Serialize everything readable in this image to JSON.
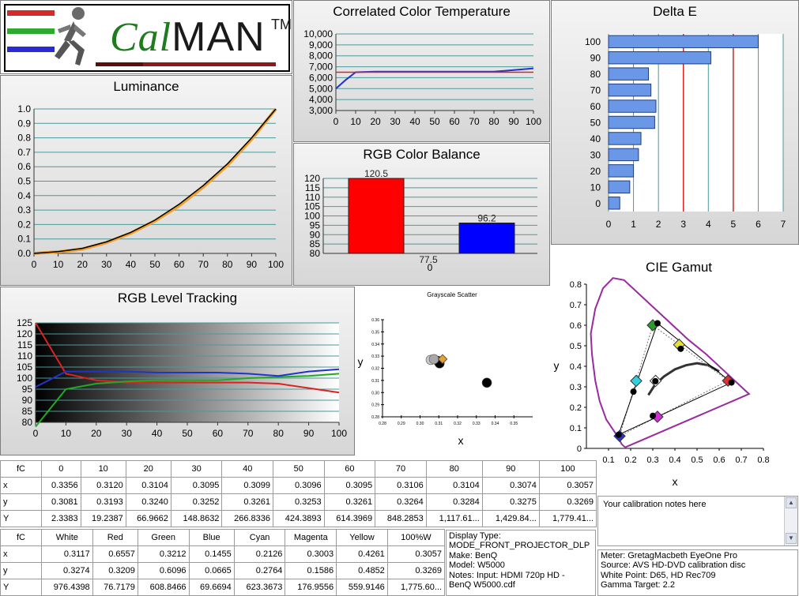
{
  "logo": {
    "brand_prefix": "Cal",
    "brand_main": "MAN",
    "trademark": "TM",
    "stripe_colors": [
      "#d42a2a",
      "#2eaa2e",
      "#2a2ad4"
    ]
  },
  "luminance": {
    "title": "Luminance",
    "chart_data": {
      "type": "line",
      "title": "Luminance",
      "x": [
        0,
        10,
        20,
        30,
        40,
        50,
        60,
        70,
        80,
        90,
        100
      ],
      "series": [
        {
          "values": [
            0,
            0.01,
            0.03,
            0.075,
            0.14,
            0.225,
            0.33,
            0.46,
            0.61,
            0.79,
            1.0
          ],
          "color": "#f0a030"
        },
        {
          "values": [
            0,
            0.012,
            0.035,
            0.08,
            0.145,
            0.23,
            0.34,
            0.47,
            0.62,
            0.8,
            1.0
          ],
          "color": "#000000"
        }
      ],
      "xlim": [
        0,
        100
      ],
      "ylim": [
        0,
        1.0
      ],
      "xticks": [
        "0",
        "10",
        "20",
        "30",
        "40",
        "50",
        "60",
        "70",
        "80",
        "90",
        "100"
      ],
      "yticks": [
        "0.0",
        "0.1",
        "0.2",
        "0.3",
        "0.4",
        "0.5",
        "0.6",
        "0.7",
        "0.8",
        "0.9",
        "1.0"
      ]
    }
  },
  "cct": {
    "title": "Correlated Color Temperature",
    "chart_data": {
      "type": "line",
      "title": "Correlated Color Temperature",
      "x": [
        0,
        5,
        10,
        20,
        30,
        40,
        50,
        60,
        70,
        80,
        90,
        100
      ],
      "series": [
        {
          "values": [
            5000,
            5800,
            6500,
            6550,
            6550,
            6550,
            6550,
            6550,
            6550,
            6550,
            6700,
            6850
          ],
          "color": "#2233cc"
        },
        {
          "values": [
            6500,
            6500,
            6500,
            6500,
            6500,
            6500,
            6500,
            6500,
            6500,
            6500,
            6500,
            6500
          ],
          "color": "#dd2222"
        }
      ],
      "xlim": [
        0,
        100
      ],
      "ylim": [
        3000,
        10000
      ],
      "xticks": [
        "0",
        "10",
        "20",
        "30",
        "40",
        "50",
        "60",
        "70",
        "80",
        "90",
        "100"
      ],
      "yticks": [
        "3,000",
        "4,000",
        "5,000",
        "6,000",
        "7,000",
        "8,000",
        "9,000",
        "10,000"
      ]
    }
  },
  "delta_e": {
    "title": "Delta E",
    "chart_data": {
      "type": "bar",
      "orientation": "horizontal",
      "title": "Delta E",
      "categories": [
        "100",
        "90",
        "80",
        "70",
        "60",
        "50",
        "40",
        "30",
        "20",
        "10",
        "0"
      ],
      "values": [
        6.0,
        4.1,
        1.6,
        1.7,
        1.9,
        1.85,
        1.3,
        1.2,
        1.0,
        0.85,
        0.45
      ],
      "xlim": [
        0,
        7
      ],
      "thresholds": [
        3,
        5
      ],
      "xticks": [
        "0",
        "1",
        "2",
        "3",
        "4",
        "5",
        "6",
        "7"
      ]
    }
  },
  "rgb_balance": {
    "title": "RGB Color Balance",
    "chart_data": {
      "type": "bar",
      "title": "RGB Color Balance",
      "categories": [
        "0"
      ],
      "series": [
        {
          "values": [
            120.5
          ],
          "color": "#ff0000",
          "label": "120.5"
        },
        {
          "values": [
            77.5
          ],
          "color": "#00aa00",
          "label": "77.5"
        },
        {
          "values": [
            96.2
          ],
          "color": "#0000ff",
          "label": "96.2"
        }
      ],
      "ylim": [
        80,
        120
      ],
      "yticks": [
        "80",
        "85",
        "90",
        "95",
        "100",
        "105",
        "110",
        "115",
        "120"
      ]
    }
  },
  "rgb_tracking": {
    "title": "RGB Level Tracking",
    "chart_data": {
      "type": "line",
      "title": "RGB Level Tracking",
      "x": [
        0,
        10,
        20,
        30,
        40,
        50,
        60,
        70,
        80,
        90,
        100
      ],
      "series": [
        {
          "values": [
            125,
            102,
            99,
            98,
            98,
            98,
            98,
            98,
            97.5,
            95.5,
            93.5
          ],
          "color": "#dd2222"
        },
        {
          "values": [
            78,
            95,
            97.5,
            98.5,
            99,
            99,
            99,
            100,
            100.5,
            101,
            102
          ],
          "color": "#22aa22"
        },
        {
          "values": [
            96,
            103,
            103,
            103,
            102.5,
            102.5,
            102.5,
            102,
            101,
            103,
            104
          ],
          "color": "#2233cc"
        }
      ],
      "xlim": [
        0,
        100
      ],
      "ylim": [
        80,
        125
      ],
      "xticks": [
        "0",
        "10",
        "20",
        "30",
        "40",
        "50",
        "60",
        "70",
        "80",
        "90",
        "100"
      ],
      "yticks": [
        "80",
        "85",
        "90",
        "95",
        "100",
        "105",
        "110",
        "115",
        "120",
        "125"
      ]
    }
  },
  "scatter": {
    "title": "Grayscale Scatter",
    "xlabel": "x",
    "ylabel": "y",
    "chart_data": {
      "type": "scatter",
      "title": "Grayscale Scatter",
      "points": [
        {
          "x": 0.3095,
          "y": 0.3261,
          "color": "#000000"
        },
        {
          "x": 0.3099,
          "y": 0.3252,
          "color": "#000000"
        },
        {
          "x": 0.3356,
          "y": 0.3081,
          "color": "#000000"
        },
        {
          "x": 0.3104,
          "y": 0.324,
          "color": "#000000"
        },
        {
          "x": 0.3057,
          "y": 0.3269,
          "color": "#c8c8c8"
        },
        {
          "x": 0.3074,
          "y": 0.3275,
          "color": "#a8a8a8"
        },
        {
          "x": 0.312,
          "y": 0.3276,
          "color": "#e8a030"
        }
      ],
      "xlim": [
        0.28,
        0.36
      ],
      "ylim": [
        0.28,
        0.36
      ],
      "xticks": [
        "0.28",
        "0.29",
        "0.30",
        "0.31",
        "0.32",
        "0.33",
        "0.34",
        "0.35"
      ],
      "yticks": [
        "0.28",
        "0.29",
        "0.30",
        "0.31",
        "0.32",
        "0.33",
        "0.34",
        "0.35",
        "0.36"
      ]
    }
  },
  "gamut": {
    "title": "CIE Gamut",
    "xlabel": "x",
    "ylabel": "y",
    "chart_data": {
      "type": "scatter",
      "title": "CIE Gamut",
      "reference": [
        {
          "name": "Red",
          "x": 0.64,
          "y": 0.33,
          "color": "#e03030"
        },
        {
          "name": "Green",
          "x": 0.3,
          "y": 0.6,
          "color": "#2a9a2a"
        },
        {
          "name": "Blue",
          "x": 0.15,
          "y": 0.06,
          "color": "#3030d0"
        },
        {
          "name": "Cyan",
          "x": 0.225,
          "y": 0.329,
          "color": "#30d0e0"
        },
        {
          "name": "Magenta",
          "x": 0.321,
          "y": 0.154,
          "color": "#d030d0"
        },
        {
          "name": "Yellow",
          "x": 0.419,
          "y": 0.505,
          "color": "#e8e030"
        },
        {
          "name": "White",
          "x": 0.3127,
          "y": 0.329,
          "color": "#ffffff"
        }
      ],
      "measured": [
        {
          "x": 0.6557,
          "y": 0.3209
        },
        {
          "x": 0.3212,
          "y": 0.6096
        },
        {
          "x": 0.1455,
          "y": 0.0665
        },
        {
          "x": 0.2126,
          "y": 0.2764
        },
        {
          "x": 0.3003,
          "y": 0.1586
        },
        {
          "x": 0.4261,
          "y": 0.4852
        },
        {
          "x": 0.3117,
          "y": 0.3274
        }
      ],
      "xlim": [
        0,
        0.8
      ],
      "ylim": [
        0,
        0.8
      ],
      "xticks": [
        "0.1",
        "0.2",
        "0.3",
        "0.4",
        "0.5",
        "0.6",
        "0.7",
        "0.8"
      ],
      "yticks": [
        "0",
        "0.1",
        "0.2",
        "0.3",
        "0.4",
        "0.5",
        "0.6",
        "0.7",
        "0.8"
      ]
    }
  },
  "grayscale_table": {
    "header": [
      "fC",
      "0",
      "10",
      "20",
      "30",
      "40",
      "50",
      "60",
      "70",
      "80",
      "90",
      "100"
    ],
    "rows": [
      [
        "x",
        "0.3356",
        "0.3120",
        "0.3104",
        "0.3095",
        "0.3099",
        "0.3096",
        "0.3095",
        "0.3106",
        "0.3104",
        "0.3074",
        "0.3057"
      ],
      [
        "y",
        "0.3081",
        "0.3193",
        "0.3240",
        "0.3252",
        "0.3261",
        "0.3253",
        "0.3261",
        "0.3264",
        "0.3284",
        "0.3275",
        "0.3269"
      ],
      [
        "Y",
        "2.3383",
        "19.2387",
        "66.9662",
        "148.8632",
        "266.8336",
        "424.3893",
        "614.3969",
        "848.2853",
        "1,117.61...",
        "1,429.84...",
        "1,779.41..."
      ]
    ]
  },
  "color_table": {
    "header": [
      "fC",
      "White",
      "Red",
      "Green",
      "Blue",
      "Cyan",
      "Magenta",
      "Yellow",
      "100%W"
    ],
    "rows": [
      [
        "x",
        "0.3117",
        "0.6557",
        "0.3212",
        "0.1455",
        "0.2126",
        "0.3003",
        "0.4261",
        "0.3057"
      ],
      [
        "y",
        "0.3274",
        "0.3209",
        "0.6096",
        "0.0665",
        "0.2764",
        "0.1586",
        "0.4852",
        "0.3269"
      ],
      [
        "Y",
        "976.4398",
        "76.7179",
        "608.8466",
        "69.6694",
        "623.3673",
        "176.9556",
        "559.9146",
        "1,775.60..."
      ]
    ]
  },
  "notes": {
    "text": "Your calibration notes here"
  },
  "display_info": {
    "lines": [
      "Display Type:",
      "MODE_FRONT_PROJECTOR_DLP",
      "Make: BenQ",
      "Model: W5000",
      "Notes: Input: HDMI 720p HD    -",
      "BenQ W5000.cdf"
    ]
  },
  "meter_info": {
    "lines": [
      "Meter: GretagMacbeth EyeOne Pro",
      "Source: AVS HD-DVD calibration disc",
      "White Point: D65, HD Rec709",
      "Gamma Target: 2.2"
    ]
  }
}
